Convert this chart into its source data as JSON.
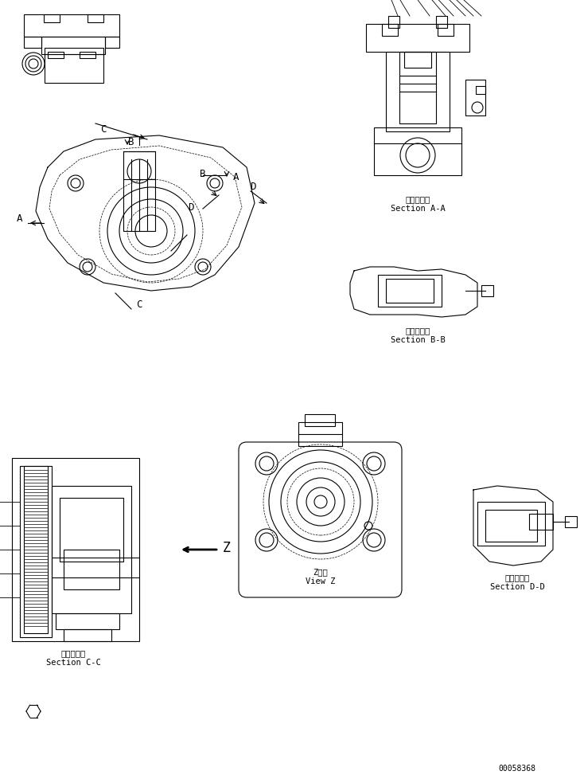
{
  "bg_color": "#ffffff",
  "line_color": "#000000",
  "fig_width": 7.34,
  "fig_height": 9.73,
  "dpi": 100,
  "labels": {
    "section_aa_jp": "断面Ａ－Ａ",
    "section_aa_en": "Section A-A",
    "section_bb_jp": "断面Ｂ－Ｂ",
    "section_bb_en": "Section B-B",
    "section_cc_jp": "断面Ｃ－Ｃ",
    "section_cc_en": "Section C-C",
    "section_dd_jp": "断面Ｄ－Ｄ",
    "section_dd_en": "Section D-D",
    "view_z_jp": "Z　視",
    "view_z_en": "View Z",
    "part_number": "00058368"
  },
  "lw": 0.8
}
